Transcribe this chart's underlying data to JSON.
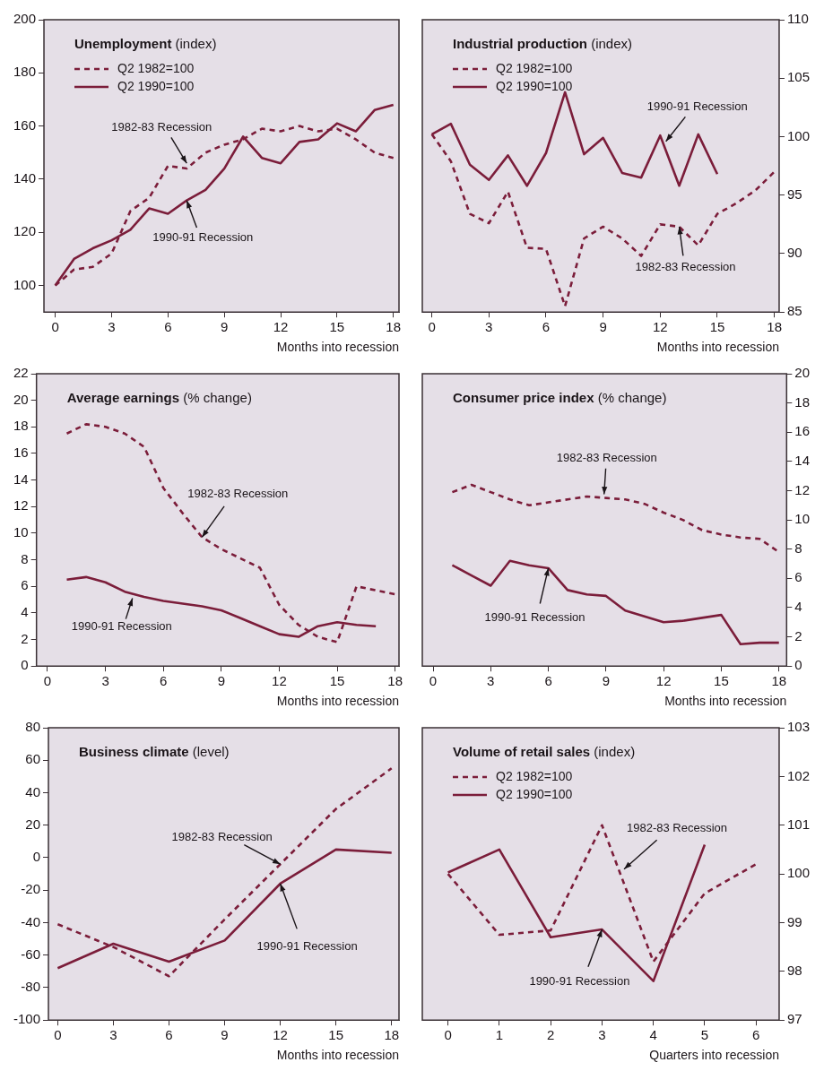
{
  "chart_data": [
    {
      "type": "line",
      "title": "Unemployment (index)",
      "xlabel": "Months into recession",
      "xlim": [
        -0.6,
        18.3
      ],
      "xticks": [
        0,
        3,
        6,
        9,
        12,
        15,
        18
      ],
      "ylim": [
        90,
        200
      ],
      "yticks": [
        100,
        120,
        140,
        160,
        180,
        200
      ],
      "legend": "top left",
      "marker": "none",
      "series": [
        {
          "name": "Q2 1982=100",
          "color": "#7b1d3a",
          "line_style": "dashed",
          "x": [
            0,
            1,
            2,
            3,
            4,
            5,
            6,
            7,
            8,
            9,
            10,
            11,
            12,
            13,
            14,
            15,
            16,
            17,
            18
          ],
          "values": [
            100,
            106,
            107,
            112,
            128,
            133,
            145,
            144,
            150,
            153,
            155,
            159,
            158,
            160,
            158,
            159,
            155,
            150,
            148
          ]
        },
        {
          "name": "Q2 1990=100",
          "color": "#7b1d3a",
          "line_style": "solid",
          "x": [
            0,
            1,
            2,
            3,
            4,
            5,
            6,
            7,
            8,
            9,
            10,
            11,
            12,
            13,
            14,
            15,
            16,
            17,
            18
          ],
          "values": [
            100,
            110,
            114,
            117,
            121,
            129,
            127,
            132,
            136,
            144,
            156,
            148,
            146,
            154,
            155,
            161,
            158,
            166,
            168
          ]
        }
      ],
      "annotations": [
        {
          "text": "1982-83 Recession",
          "x": 7,
          "y": 146
        },
        {
          "text": "1990-91 Recession",
          "x": 7,
          "y": 132
        }
      ]
    },
    {
      "type": "line",
      "title": "Industrial production (index)",
      "xlabel": "Months into recession",
      "xlim": [
        -0.5,
        18.25
      ],
      "xticks": [
        0,
        3,
        6,
        9,
        12,
        15,
        18
      ],
      "ylim": [
        85,
        110
      ],
      "yticks": [
        85,
        90,
        95,
        100,
        105,
        110
      ],
      "legend": "top left",
      "marker": "none",
      "series": [
        {
          "name": "Q2 1982=100",
          "color": "#7b1d3a",
          "line_style": "dashed",
          "x": [
            0,
            1,
            2,
            3,
            4,
            5,
            6,
            7,
            8,
            9,
            10,
            11,
            12,
            13,
            14,
            15,
            16,
            17,
            18
          ],
          "values": [
            100.2,
            97.9,
            93.4,
            92.6,
            95.3,
            90.5,
            90.4,
            85.5,
            91.3,
            92.3,
            91.3,
            89.8,
            92.5,
            92.3,
            90.7,
            93.4,
            94.3,
            95.4,
            97
          ]
        },
        {
          "name": "Q2 1990=100",
          "color": "#7b1d3a",
          "line_style": "solid",
          "x": [
            0,
            1,
            2,
            3,
            4,
            5,
            6,
            7,
            8,
            9,
            10,
            11,
            12,
            13,
            14,
            15
          ],
          "values": [
            100.2,
            101.1,
            97.6,
            96.3,
            98.4,
            95.8,
            98.6,
            103.8,
            98.5,
            99.9,
            96.9,
            96.5,
            100.1,
            95.8,
            100.2,
            96.8
          ]
        }
      ],
      "annotations": [
        {
          "text": "1990-91 Recession",
          "x": 12.3,
          "y": 99.6
        },
        {
          "text": "1982-83 Recession",
          "x": 13,
          "y": 92.3
        }
      ]
    },
    {
      "type": "line",
      "title": "Average earnings (% change)",
      "xlabel": "Months into recession",
      "xlim": [
        -0.57,
        18.2
      ],
      "xticks": [
        0,
        3,
        6,
        9,
        12,
        15,
        18
      ],
      "ylim": [
        0,
        22
      ],
      "yticks": [
        0,
        2,
        4,
        6,
        8,
        10,
        12,
        14,
        16,
        18,
        20,
        22
      ],
      "marker": "none",
      "series": [
        {
          "color": "#7b1d3a",
          "line_style": "dashed",
          "x": [
            1,
            2,
            3,
            4,
            5,
            6,
            7,
            8,
            9,
            10,
            11,
            12,
            13,
            14,
            15,
            16,
            17,
            18
          ],
          "values": [
            17.5,
            18.2,
            18,
            17.5,
            16.5,
            13.4,
            11.5,
            9.7,
            8.8,
            8.1,
            7.4,
            4.6,
            3.1,
            2.2,
            1.8,
            6,
            5.7,
            5.4
          ]
        },
        {
          "color": "#7b1d3a",
          "line_style": "solid",
          "x": [
            1,
            2,
            3,
            4,
            5,
            6,
            7,
            8,
            9,
            10,
            11,
            12,
            13,
            14,
            15,
            16,
            17
          ],
          "values": [
            6.5,
            6.7,
            6.3,
            5.6,
            5.2,
            4.9,
            4.7,
            4.5,
            4.2,
            3.6,
            3,
            2.4,
            2.2,
            3,
            3.3,
            3.1,
            3
          ]
        }
      ],
      "annotations": [
        {
          "text": "1982-83 Recession",
          "x": 8,
          "y": 9.7
        },
        {
          "text": "1990-91 Recession",
          "x": 4.4,
          "y": 5.1
        }
      ]
    },
    {
      "type": "line",
      "title": "Consumer price index (% change)",
      "xlabel": "Months into recession",
      "xlim": [
        -0.56,
        18.4
      ],
      "xticks": [
        0,
        3,
        6,
        9,
        12,
        15,
        18
      ],
      "ylim": [
        0,
        20
      ],
      "yticks": [
        0,
        2,
        4,
        6,
        8,
        10,
        12,
        14,
        16,
        18,
        20
      ],
      "marker": "none",
      "series": [
        {
          "color": "#7b1d3a",
          "line_style": "dashed",
          "x": [
            1,
            2,
            3,
            4,
            5,
            6,
            7,
            8,
            9,
            10,
            11,
            12,
            13,
            14,
            15,
            16,
            17,
            18
          ],
          "values": [
            11.9,
            12.4,
            11.9,
            11.4,
            11,
            11.2,
            11.4,
            11.6,
            11.5,
            11.4,
            11.1,
            10.5,
            10,
            9.3,
            9,
            8.8,
            8.7,
            7.8
          ]
        },
        {
          "color": "#7b1d3a",
          "line_style": "solid",
          "x": [
            1,
            2,
            3,
            4,
            5,
            6,
            7,
            8,
            9,
            10,
            11,
            12,
            13,
            14,
            15,
            16,
            17,
            18
          ],
          "values": [
            6.9,
            6.2,
            5.5,
            7.2,
            6.9,
            6.7,
            5.2,
            4.9,
            4.8,
            3.8,
            3.4,
            3,
            3.1,
            3.3,
            3.5,
            1.5,
            1.6,
            1.6
          ]
        }
      ],
      "annotations": [
        {
          "text": "1982-83 Recession",
          "x": 8.9,
          "y": 11.75
        },
        {
          "text": "1990-91 Recession",
          "x": 6,
          "y": 6.7
        }
      ]
    },
    {
      "type": "line",
      "title": "Business climate (level)",
      "xlabel": "Months into recession",
      "xlim": [
        -0.5,
        18.4
      ],
      "xticks": [
        0,
        3,
        6,
        9,
        12,
        15,
        18
      ],
      "ylim": [
        -100,
        80
      ],
      "yticks": [
        -100,
        -80,
        -60,
        -40,
        -20,
        0,
        20,
        40,
        60,
        80
      ],
      "marker": "none",
      "series": [
        {
          "color": "#7b1d3a",
          "line_style": "dashed",
          "x": [
            0,
            3,
            6,
            9,
            12,
            15,
            18
          ],
          "values": [
            -41,
            -55,
            -73,
            -38,
            -4,
            30,
            55
          ]
        },
        {
          "color": "#7b1d3a",
          "line_style": "solid",
          "x": [
            0,
            3,
            6,
            9,
            12,
            15,
            18
          ],
          "values": [
            -68,
            -53,
            -64,
            -51,
            -16,
            5,
            3
          ]
        }
      ],
      "annotations": [
        {
          "text": "1982-83 Recession",
          "x": 12,
          "y": -4
        },
        {
          "text": "1990-91 Recession",
          "x": 12,
          "y": -16
        }
      ]
    },
    {
      "type": "line",
      "title": "Volume of retail sales (index)",
      "xlabel": "Quarters into recession",
      "xlim": [
        -0.5,
        6.45
      ],
      "xticks": [
        0,
        1,
        2,
        3,
        4,
        5,
        6
      ],
      "ylim": [
        97,
        103
      ],
      "yticks": [
        97,
        98,
        99,
        100,
        101,
        102,
        103
      ],
      "legend": "top left",
      "marker": "none",
      "series": [
        {
          "name": "Q2 1982=100",
          "color": "#7b1d3a",
          "line_style": "dashed",
          "x": [
            0,
            1,
            2,
            3,
            4,
            5,
            6
          ],
          "values": [
            100,
            98.75,
            98.84,
            101,
            98.2,
            99.6,
            100.2
          ]
        },
        {
          "name": "Q2 1990=100",
          "color": "#7b1d3a",
          "line_style": "solid",
          "x": [
            0,
            1,
            2,
            3,
            4,
            5
          ],
          "values": [
            100.03,
            100.5,
            98.7,
            98.86,
            97.8,
            100.6
          ]
        }
      ],
      "annotations": [
        {
          "text": "1982-83 Recession",
          "x": 3.43,
          "y": 100.1
        },
        {
          "text": "1990-91 Recession",
          "x": 3,
          "y": 98.86
        }
      ]
    }
  ]
}
